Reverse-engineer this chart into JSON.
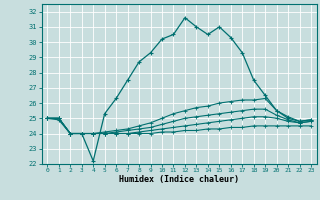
{
  "xlabel": "Humidex (Indice chaleur)",
  "bg_color": "#c8dede",
  "grid_color": "#ffffff",
  "line_color": "#007070",
  "xlim": [
    -0.5,
    23.5
  ],
  "ylim": [
    22,
    32.5
  ],
  "yticks": [
    22,
    23,
    24,
    25,
    26,
    27,
    28,
    29,
    30,
    31,
    32
  ],
  "xticks": [
    0,
    1,
    2,
    3,
    4,
    5,
    6,
    7,
    8,
    9,
    10,
    11,
    12,
    13,
    14,
    15,
    16,
    17,
    18,
    19,
    20,
    21,
    22,
    23
  ],
  "main_line": [
    25,
    24.9,
    24.0,
    24.0,
    22.2,
    25.3,
    26.3,
    27.5,
    28.7,
    29.3,
    30.2,
    30.5,
    31.6,
    31.0,
    30.5,
    31.0,
    30.3,
    29.3,
    27.5,
    26.5,
    25.5,
    25.0,
    24.8,
    24.9
  ],
  "flat_line1": [
    25,
    25,
    24.0,
    24.0,
    24.0,
    24.1,
    24.2,
    24.3,
    24.5,
    24.7,
    25.0,
    25.3,
    25.5,
    25.7,
    25.8,
    26.0,
    26.1,
    26.2,
    26.2,
    26.3,
    25.5,
    25.1,
    24.8,
    24.9
  ],
  "flat_line2": [
    25,
    25,
    24.0,
    24.0,
    24.0,
    24.0,
    24.1,
    24.2,
    24.3,
    24.4,
    24.6,
    24.8,
    25.0,
    25.1,
    25.2,
    25.3,
    25.4,
    25.5,
    25.6,
    25.6,
    25.2,
    24.9,
    24.7,
    24.8
  ],
  "flat_line3": [
    25,
    25,
    24.0,
    24.0,
    24.0,
    24.0,
    24.0,
    24.0,
    24.1,
    24.2,
    24.3,
    24.4,
    24.5,
    24.6,
    24.7,
    24.8,
    24.9,
    25.0,
    25.1,
    25.1,
    25.0,
    24.8,
    24.7,
    24.8
  ],
  "flat_line4": [
    25,
    25,
    24.0,
    24.0,
    24.0,
    24.0,
    24.0,
    24.0,
    24.0,
    24.0,
    24.1,
    24.1,
    24.2,
    24.2,
    24.3,
    24.3,
    24.4,
    24.4,
    24.5,
    24.5,
    24.5,
    24.5,
    24.5,
    24.5
  ]
}
